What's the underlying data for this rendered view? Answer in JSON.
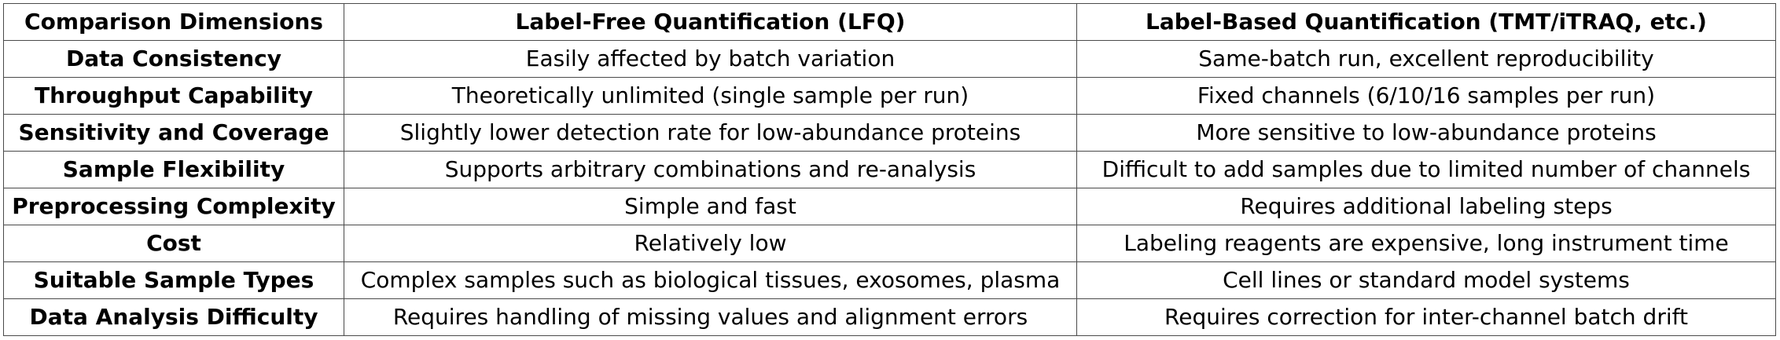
{
  "table": {
    "headers": [
      "Comparison Dimensions",
      "Label-Free Quantification (LFQ)",
      "Label-Based Quantification (TMT/iTRAQ, etc.)"
    ],
    "rows": [
      [
        "Data Consistency",
        "Easily affected by batch variation",
        "Same-batch run, excellent reproducibility"
      ],
      [
        "Throughput Capability",
        "Theoretically unlimited (single sample per run)",
        "Fixed channels (6/10/16 samples per run)"
      ],
      [
        "Sensitivity and Coverage",
        "Slightly lower detection rate for low-abundance proteins",
        "More sensitive to low-abundance proteins"
      ],
      [
        "Sample Flexibility",
        "Supports arbitrary combinations and re-analysis",
        "Difficult to add samples due to limited number of channels"
      ],
      [
        "Preprocessing Complexity",
        "Simple and fast",
        "Requires additional labeling steps"
      ],
      [
        "Cost",
        "Relatively low",
        "Labeling reagents are expensive, long instrument time"
      ],
      [
        "Suitable Sample Types",
        "Complex samples such as biological tissues, exosomes, plasma",
        "Cell lines or standard model systems"
      ],
      [
        "Data Analysis Difficulty",
        "Requires handling of missing values and alignment errors",
        "Requires correction for inter-channel batch drift"
      ]
    ]
  }
}
